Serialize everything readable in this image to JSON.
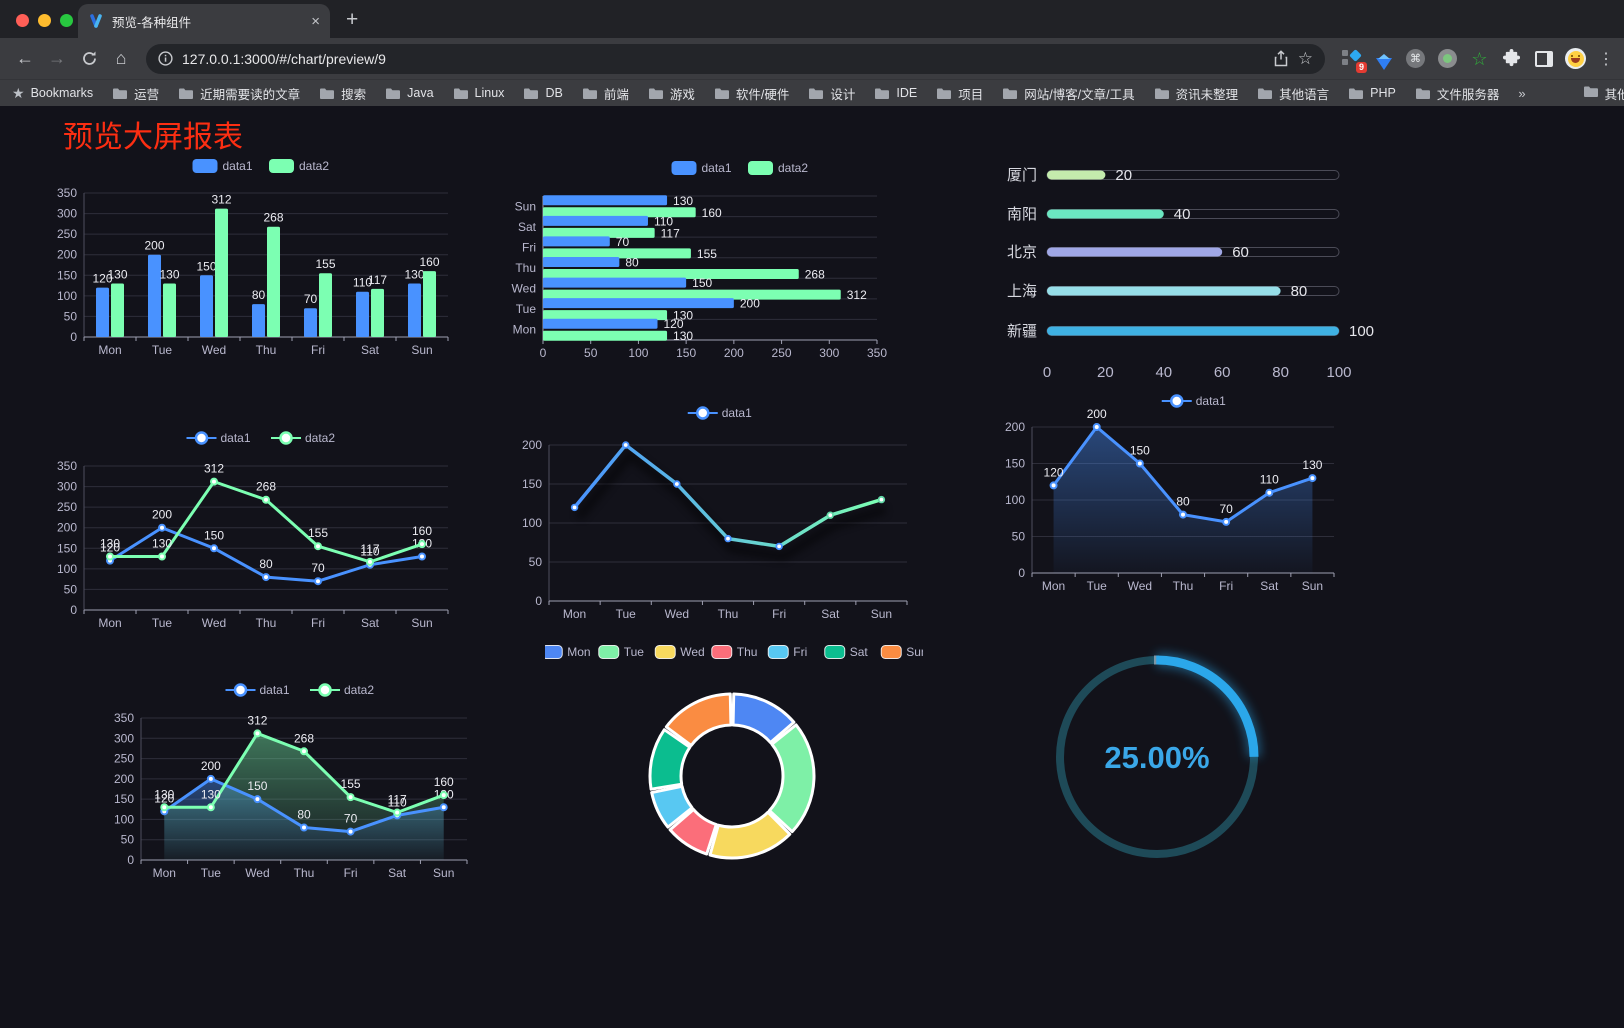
{
  "browser": {
    "traffic_lights": [
      "#ff5f57",
      "#febc2e",
      "#28c840"
    ],
    "tab": {
      "title": "预览-各种组件",
      "favicon": "v-logo-icon",
      "close": "×",
      "new_tab": "+"
    },
    "url": "127.0.0.1:3000/#/chart/preview/9",
    "extension_badge": "9",
    "toolbar_icons": {
      "nav": [
        "back-arrow",
        "forward-arrow",
        "reload-icon",
        "home-icon"
      ],
      "url_icons": [
        "info-icon",
        "share-icon",
        "star-icon"
      ],
      "extensions": [
        "grid-diamond-extension",
        "gem-extension",
        "command-extension",
        "record-extension",
        "green-star-extension"
      ],
      "right": [
        "puzzle-extensions-icon",
        "side-panel-icon",
        "profile-avatar",
        "kebab-menu"
      ]
    },
    "bookmarks": {
      "label": "Bookmarks",
      "folders": [
        "运营",
        "近期需要读的文章",
        "搜索",
        "Java",
        "Linux",
        "DB",
        "前端",
        "游戏",
        "软件/硬件",
        "设计",
        "IDE",
        "项目",
        "网站/博客/文章/工具",
        "资讯未整理",
        "其他语言",
        "PHP",
        "文件服务器"
      ],
      "overflow": "»",
      "other_bookmarks": "其他书签"
    }
  },
  "page": {
    "title": "预览大屏报表",
    "title_color": "#fc2e12",
    "background": "#12121a"
  },
  "chart_data": [
    {
      "type": "bar",
      "categories": [
        "Mon",
        "Tue",
        "Wed",
        "Thu",
        "Fri",
        "Sat",
        "Sun"
      ],
      "series": [
        {
          "name": "data1",
          "color": "#4992ff",
          "values": [
            120,
            200,
            150,
            80,
            70,
            110,
            130
          ]
        },
        {
          "name": "data2",
          "color": "#7cffb2",
          "values": [
            130,
            130,
            312,
            268,
            155,
            117,
            160
          ]
        }
      ],
      "ylim": [
        0,
        350
      ],
      "yticks": [
        0,
        50,
        100,
        150,
        200,
        250,
        300,
        350
      ],
      "legend_position": "top"
    },
    {
      "type": "bar-horizontal",
      "categories": [
        "Mon",
        "Tue",
        "Wed",
        "Thu",
        "Fri",
        "Sat",
        "Sun"
      ],
      "display_order_top_to_bottom": [
        "Sun",
        "Sat",
        "Fri",
        "Thu",
        "Wed",
        "Tue",
        "Mon"
      ],
      "series": [
        {
          "name": "data1",
          "color": "#4992ff",
          "values": [
            120,
            200,
            150,
            80,
            70,
            110,
            130
          ]
        },
        {
          "name": "data2",
          "color": "#7cffb2",
          "values": [
            130,
            130,
            312,
            268,
            155,
            117,
            160
          ]
        }
      ],
      "xlim": [
        0,
        350
      ],
      "xticks": [
        0,
        50,
        100,
        150,
        200,
        250,
        300,
        350
      ],
      "legend_position": "top"
    },
    {
      "type": "bar-progress",
      "categories": [
        "厦门",
        "南阳",
        "北京",
        "上海",
        "新疆"
      ],
      "values": [
        20,
        40,
        60,
        80,
        100
      ],
      "colors": [
        "#c4ebad",
        "#6be6c1",
        "#a0a7e6",
        "#96dee8",
        "#3fb1e3"
      ],
      "xlim": [
        0,
        100
      ],
      "xticks": [
        0,
        20,
        40,
        60,
        80,
        100
      ]
    },
    {
      "type": "line",
      "categories": [
        "Mon",
        "Tue",
        "Wed",
        "Thu",
        "Fri",
        "Sat",
        "Sun"
      ],
      "series": [
        {
          "name": "data1",
          "color": "#4992ff",
          "values": [
            120,
            200,
            150,
            80,
            70,
            110,
            130
          ]
        },
        {
          "name": "data2",
          "color": "#7cffb2",
          "values": [
            130,
            130,
            312,
            268,
            155,
            117,
            160
          ]
        }
      ],
      "ylim": [
        0,
        350
      ],
      "yticks": [
        0,
        50,
        100,
        150,
        200,
        250,
        300,
        350
      ],
      "show_labels": true
    },
    {
      "type": "line-gradient",
      "categories": [
        "Mon",
        "Tue",
        "Wed",
        "Thu",
        "Fri",
        "Sat",
        "Sun"
      ],
      "series": [
        {
          "name": "data1",
          "values": [
            120,
            200,
            150,
            80,
            70,
            110,
            130
          ]
        }
      ],
      "gradient": [
        "#4992ff",
        "#7cffb2"
      ],
      "ylim": [
        0,
        200
      ],
      "yticks": [
        0,
        50,
        100,
        150,
        200
      ],
      "show_labels": false
    },
    {
      "type": "area",
      "categories": [
        "Mon",
        "Tue",
        "Wed",
        "Thu",
        "Fri",
        "Sat",
        "Sun"
      ],
      "series": [
        {
          "name": "data1",
          "color": "#4992ff",
          "values": [
            120,
            200,
            150,
            80,
            70,
            110,
            130
          ]
        }
      ],
      "ylim": [
        0,
        200
      ],
      "yticks": [
        0,
        50,
        100,
        150,
        200
      ],
      "show_labels": true
    },
    {
      "type": "area-double",
      "categories": [
        "Mon",
        "Tue",
        "Wed",
        "Thu",
        "Fri",
        "Sat",
        "Sun"
      ],
      "series": [
        {
          "name": "data1",
          "color": "#4992ff",
          "values": [
            120,
            200,
            150,
            80,
            70,
            110,
            130
          ]
        },
        {
          "name": "data2",
          "color": "#7cffb2",
          "values": [
            130,
            130,
            312,
            268,
            155,
            117,
            160
          ]
        }
      ],
      "ylim": [
        0,
        350
      ],
      "yticks": [
        0,
        50,
        100,
        150,
        200,
        250,
        300,
        350
      ],
      "show_labels": true
    },
    {
      "type": "pie-donut",
      "categories": [
        "Mon",
        "Tue",
        "Wed",
        "Thu",
        "Fri",
        "Sat",
        "Sun"
      ],
      "values": [
        120,
        200,
        150,
        80,
        70,
        110,
        130
      ],
      "colors": [
        "#4e87f3",
        "#7ef0a7",
        "#f7d95e",
        "#fb6e7a",
        "#58c8f2",
        "#0bbd8f",
        "#fa8c42"
      ],
      "legend_position": "top"
    },
    {
      "type": "gauge-progress",
      "percent": 25,
      "value_label": "25.00%",
      "arc_color": "#2ba7ea",
      "track_color": "#1e4a58",
      "text_color": "#3aa7e8"
    }
  ]
}
